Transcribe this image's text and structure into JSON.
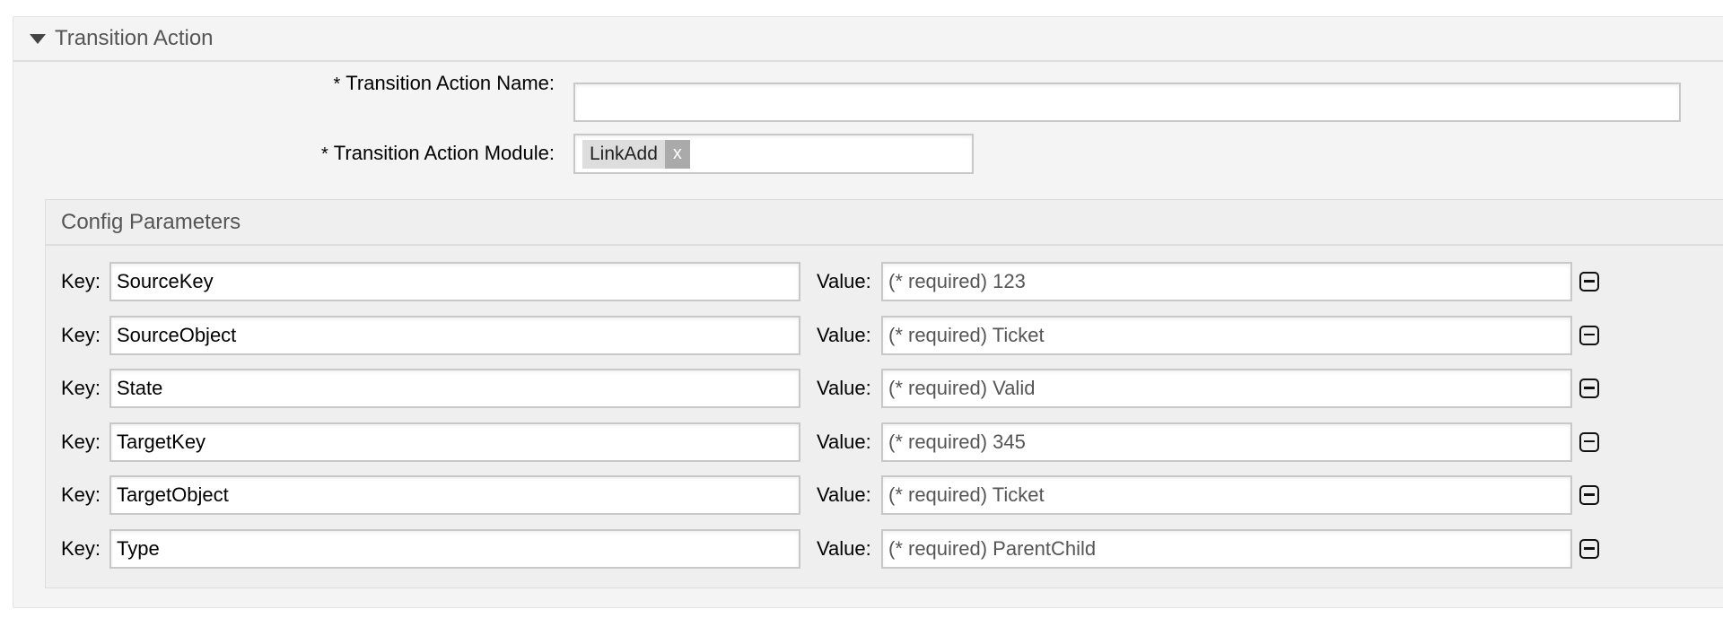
{
  "section": {
    "title": "Transition Action",
    "icon": "caret-down-icon"
  },
  "form": {
    "name_label": "Transition Action Name:",
    "name_value": "",
    "module_label": "Transition Action Module:",
    "module_tag": "LinkAdd",
    "module_tag_remove": "x",
    "required_mark": "*"
  },
  "config": {
    "title": "Config Parameters",
    "key_label": "Key:",
    "value_label": "Value:",
    "rows": [
      {
        "key": "SourceKey",
        "value": "(* required) 123"
      },
      {
        "key": "SourceObject",
        "value": "(* required) Ticket"
      },
      {
        "key": "State",
        "value": "(* required) Valid"
      },
      {
        "key": "TargetKey",
        "value": "(* required) 345"
      },
      {
        "key": "TargetObject",
        "value": "(* required) Ticket"
      },
      {
        "key": "Type",
        "value": "(* required) ParentChild"
      }
    ]
  }
}
